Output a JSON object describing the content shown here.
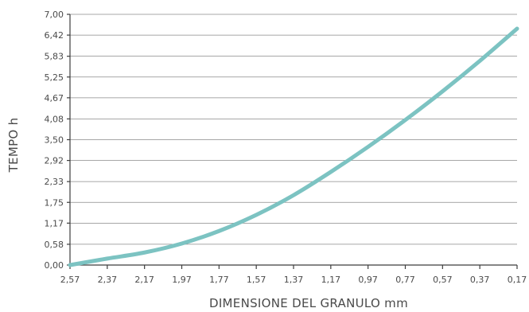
{
  "chart_data": {
    "type": "line",
    "title": "",
    "xlabel": "DIMENSIONE DEL GRANULO mm",
    "ylabel": "TEMPO h",
    "x_ticks": [
      "2,57",
      "2,37",
      "2,17",
      "1,97",
      "1,77",
      "1,57",
      "1,37",
      "1,17",
      "0,97",
      "0,77",
      "0,57",
      "0,37",
      "0,17"
    ],
    "y_ticks": [
      "0,00",
      "0,58",
      "1,17",
      "1,75",
      "2,33",
      "2,92",
      "3,50",
      "4,08",
      "4,67",
      "5,25",
      "5,83",
      "6,42",
      "7,00"
    ],
    "xlim": [
      2.57,
      0.17
    ],
    "ylim": [
      0,
      7
    ],
    "x_reversed": true,
    "grid": "horizontal",
    "series": [
      {
        "name": "",
        "color": "#7cc3c2",
        "x": [
          2.57,
          2.37,
          2.17,
          1.97,
          1.77,
          1.57,
          1.37,
          1.17,
          0.97,
          0.77,
          0.57,
          0.37,
          0.17
        ],
        "y": [
          0.0,
          0.18,
          0.35,
          0.6,
          0.95,
          1.4,
          1.95,
          2.6,
          3.3,
          4.05,
          4.85,
          5.7,
          6.6
        ]
      }
    ]
  }
}
